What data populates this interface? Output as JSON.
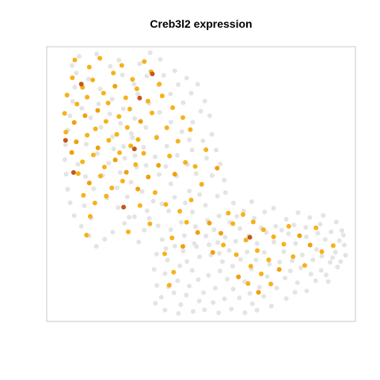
{
  "chart_data": {
    "type": "scatter",
    "title": "Creb3l2 expression",
    "xlabel": "",
    "ylabel": "",
    "xlim": [
      0,
      100
    ],
    "ylim": [
      0,
      100
    ],
    "grid": false,
    "legend": "none",
    "colors": {
      "background_cells": "#e4e4e4",
      "expressing": "#f6b21a",
      "expressing_mid": "#efa00b",
      "high": "#c6561a",
      "panel_border": "#c8c8c8"
    },
    "background_cells": [
      [
        10.5,
        96.5
      ],
      [
        16.2,
        97.3
      ],
      [
        23.4,
        95.1
      ],
      [
        30.1,
        93.8
      ],
      [
        36.8,
        95.4
      ],
      [
        41.5,
        91.2
      ],
      [
        45.3,
        88.6
      ],
      [
        48.9,
        86.3
      ],
      [
        51.2,
        80.2
      ],
      [
        52.8,
        74.9
      ],
      [
        53.5,
        68.1
      ],
      [
        54.9,
        62.4
      ],
      [
        56.2,
        57.3
      ],
      [
        53.6,
        53.1
      ],
      [
        50.1,
        49.8
      ],
      [
        46.2,
        47.5
      ],
      [
        41.4,
        45.2
      ],
      [
        37.3,
        42.8
      ],
      [
        32.5,
        40.3
      ],
      [
        28.4,
        38.1
      ],
      [
        25.2,
        35.7
      ],
      [
        21.4,
        32.5
      ],
      [
        18.8,
        29.9
      ],
      [
        16.1,
        27.3
      ],
      [
        13.7,
        31.2
      ],
      [
        11.2,
        34.6
      ],
      [
        8.9,
        38.5
      ],
      [
        7.6,
        43.2
      ],
      [
        6.8,
        48.1
      ],
      [
        6.3,
        53.6
      ],
      [
        5.9,
        58.9
      ],
      [
        6.1,
        64.3
      ],
      [
        6.8,
        69.6
      ],
      [
        7.5,
        74.8
      ],
      [
        8.4,
        80.1
      ],
      [
        9.1,
        85.3
      ],
      [
        9.6,
        90.4
      ],
      [
        13.5,
        88.2
      ],
      [
        17.3,
        84.6
      ],
      [
        21.2,
        80.9
      ],
      [
        24.8,
        77.4
      ],
      [
        28.5,
        73.9
      ],
      [
        32.1,
        70.6
      ],
      [
        35.6,
        67.2
      ],
      [
        38.9,
        63.8
      ],
      [
        42.3,
        60.5
      ],
      [
        45.6,
        57.1
      ],
      [
        48.4,
        53.8
      ],
      [
        40.2,
        50.1
      ],
      [
        36.4,
        53.5
      ],
      [
        32.2,
        56.8
      ],
      [
        28.6,
        60.3
      ],
      [
        24.9,
        63.7
      ],
      [
        21.3,
        67.2
      ],
      [
        17.6,
        70.7
      ],
      [
        14.2,
        74.1
      ],
      [
        11.4,
        77.6
      ],
      [
        12.8,
        64.5
      ],
      [
        16.4,
        61.1
      ],
      [
        20.1,
        57.6
      ],
      [
        23.8,
        54.2
      ],
      [
        27.3,
        50.7
      ],
      [
        30.9,
        47.3
      ],
      [
        34.5,
        43.8
      ],
      [
        19.5,
        44.9
      ],
      [
        23.1,
        41.4
      ],
      [
        26.7,
        37.9
      ],
      [
        15.2,
        48.3
      ],
      [
        12.6,
        52.7
      ],
      [
        10.1,
        57.2
      ],
      [
        44.2,
        79.6
      ],
      [
        40.1,
        82.8
      ],
      [
        36.2,
        86.1
      ],
      [
        32.4,
        89.3
      ],
      [
        28.3,
        86.4
      ],
      [
        24.5,
        89.7
      ],
      [
        20.6,
        92.9
      ],
      [
        47.3,
        72.5
      ],
      [
        43.8,
        69.1
      ],
      [
        40.2,
        72.6
      ],
      [
        36.6,
        76.1
      ],
      [
        33.1,
        79.4
      ],
      [
        29.5,
        82.8
      ],
      [
        50.6,
        65.8
      ],
      [
        47.1,
        62.4
      ],
      [
        27.8,
        66.9
      ],
      [
        31.4,
        63.4
      ],
      [
        35.1,
        59.9
      ],
      [
        38.6,
        56.4
      ],
      [
        42.1,
        52.9
      ],
      [
        57.5,
        51.4
      ],
      [
        55.3,
        45.6
      ],
      [
        51.4,
        42.3
      ],
      [
        47.2,
        39.8
      ],
      [
        43.6,
        36.1
      ],
      [
        40.2,
        33.4
      ],
      [
        37.4,
        29.8
      ],
      [
        35.6,
        24.5
      ],
      [
        34.8,
        18.9
      ],
      [
        35.7,
        13.1
      ],
      [
        37.1,
        8.8
      ],
      [
        39.4,
        12.6
      ],
      [
        38.3,
        17.4
      ],
      [
        39.1,
        22.3
      ],
      [
        41.5,
        27.4
      ],
      [
        44.6,
        31.2
      ],
      [
        48.2,
        34.5
      ],
      [
        52.1,
        36.8
      ],
      [
        55.8,
        38.4
      ],
      [
        59.3,
        36.1
      ],
      [
        62.6,
        33.8
      ],
      [
        65.4,
        31.2
      ],
      [
        68.1,
        28.4
      ],
      [
        70.5,
        25.1
      ],
      [
        72.1,
        20.8
      ],
      [
        71.4,
        16.3
      ],
      [
        68.9,
        12.4
      ],
      [
        65.8,
        10.2
      ],
      [
        62.4,
        8.6
      ],
      [
        64.1,
        14.5
      ],
      [
        66.3,
        19.1
      ],
      [
        62.8,
        22.6
      ],
      [
        59.1,
        25.8
      ],
      [
        55.4,
        28.7
      ],
      [
        51.6,
        31.1
      ],
      [
        47.8,
        28.4
      ],
      [
        44.2,
        25.6
      ],
      [
        43.1,
        20.2
      ],
      [
        42.4,
        14.8
      ],
      [
        58.5,
        15.4
      ],
      [
        60.2,
        20.1
      ],
      [
        56.9,
        21.8
      ],
      [
        53.2,
        24.2
      ],
      [
        49.5,
        23.5
      ],
      [
        47.1,
        18.6
      ],
      [
        46.2,
        12.9
      ],
      [
        50.8,
        10.5
      ],
      [
        54.6,
        12.1
      ],
      [
        73.6,
        28.9
      ],
      [
        76.8,
        25.4
      ],
      [
        79.5,
        22.1
      ],
      [
        82.3,
        19.5
      ],
      [
        85.6,
        17.2
      ],
      [
        88.9,
        18.6
      ],
      [
        91.8,
        21.5
      ],
      [
        93.5,
        25.2
      ],
      [
        94.8,
        29.4
      ],
      [
        95.6,
        33.1
      ],
      [
        96.4,
        27.8
      ],
      [
        92.1,
        32.6
      ],
      [
        88.6,
        35.4
      ],
      [
        85.2,
        37.8
      ],
      [
        81.4,
        39.6
      ],
      [
        77.6,
        37.2
      ],
      [
        74.2,
        34.6
      ],
      [
        71.1,
        32.4
      ],
      [
        84.1,
        30.8
      ],
      [
        80.6,
        28.4
      ],
      [
        87.4,
        26.2
      ],
      [
        90.2,
        29.8
      ],
      [
        78.3,
        31.9
      ],
      [
        82.8,
        24.2
      ],
      [
        86.2,
        22.4
      ],
      [
        75.4,
        21.6
      ],
      [
        78.9,
        18.4
      ],
      [
        63.8,
        40.2
      ],
      [
        60.5,
        43.1
      ],
      [
        67.2,
        37.5
      ],
      [
        70.6,
        39.8
      ],
      [
        66.4,
        43.6
      ],
      [
        73.5,
        41.2
      ],
      [
        84.2,
        11.1
      ],
      [
        91.2,
        14.5
      ],
      [
        89.6,
        38.6
      ],
      [
        93.8,
        36.2
      ],
      [
        8.2,
        93.1
      ],
      [
        33.5,
        97.8
      ],
      [
        12.2,
        42.1
      ],
      [
        14.4,
        37.5
      ],
      [
        31.6,
        33.2
      ],
      [
        29.8,
        28.9
      ],
      [
        22.8,
        48.6
      ],
      [
        26.1,
        45.3
      ],
      [
        18.1,
        53.2
      ],
      [
        21.7,
        62.8
      ],
      [
        25.3,
        59.4
      ],
      [
        29.1,
        56.2
      ],
      [
        16.8,
        79.2
      ],
      [
        20.4,
        75.6
      ],
      [
        23.9,
        72.1
      ],
      [
        27.4,
        68.4
      ],
      [
        37.9,
        89.6
      ],
      [
        42.6,
        86.2
      ],
      [
        46.8,
        83.1
      ],
      [
        49.9,
        76.5
      ],
      [
        46.2,
        66.1
      ],
      [
        51.8,
        59.4
      ],
      [
        49.5,
        46.2
      ],
      [
        44.9,
        43.1
      ],
      [
        39.5,
        40.2
      ],
      [
        57.9,
        46.9
      ],
      [
        61.6,
        38.2
      ],
      [
        69.4,
        34.1
      ],
      [
        76.1,
        33.2
      ],
      [
        80.1,
        35.1
      ],
      [
        83.9,
        34.2
      ],
      [
        87.8,
        32.1
      ],
      [
        92.6,
        23.2
      ],
      [
        94.2,
        19.8
      ],
      [
        96.8,
        24.1
      ],
      [
        89.1,
        23.8
      ],
      [
        81.2,
        14.1
      ],
      [
        77.2,
        15.8
      ],
      [
        74.5,
        12.2
      ],
      [
        70.3,
        9.1
      ],
      [
        66.6,
        6.4
      ],
      [
        52.4,
        16.8
      ],
      [
        56.1,
        18.4
      ],
      [
        49.1,
        15.2
      ],
      [
        45.4,
        21.8
      ],
      [
        41.2,
        10.4
      ],
      [
        38.6,
        26.5
      ],
      [
        36.1,
        34.8
      ],
      [
        33.2,
        37.5
      ],
      [
        54.2,
        33.4
      ],
      [
        57.8,
        30.6
      ],
      [
        61.2,
        29.2
      ],
      [
        64.9,
        25.3
      ],
      [
        67.8,
        22.4
      ],
      [
        60.4,
        11.8
      ],
      [
        57.6,
        8.2
      ],
      [
        53.9,
        6.9
      ],
      [
        49.4,
        7.4
      ],
      [
        45.2,
        9.6
      ],
      [
        43.4,
        6.1
      ],
      [
        48.5,
        27.2
      ],
      [
        52.6,
        27.9
      ],
      [
        55.9,
        24.8
      ],
      [
        96.1,
        31.4
      ],
      [
        95.2,
        21.8
      ],
      [
        90.5,
        16.9
      ],
      [
        87.1,
        14.8
      ],
      [
        80.4,
        10.6
      ],
      [
        77.6,
        8.3
      ],
      [
        72.8,
        5.6
      ],
      [
        68.1,
        4.1
      ],
      [
        64.2,
        3.2
      ],
      [
        59.8,
        4.5
      ],
      [
        55.7,
        3.1
      ],
      [
        51.1,
        4.2
      ],
      [
        47.4,
        3.6
      ],
      [
        42.7,
        2.9
      ],
      [
        38.3,
        4.1
      ],
      [
        35.2,
        6.6
      ]
    ],
    "expressing_cells": [
      [
        9.1,
        95.2
      ],
      [
        13.8,
        92.6
      ],
      [
        17.2,
        95.8
      ],
      [
        21.6,
        90.4
      ],
      [
        24.3,
        93.2
      ],
      [
        27.8,
        88.1
      ],
      [
        31.6,
        94.6
      ],
      [
        33.8,
        90.9
      ],
      [
        36.5,
        86.4
      ],
      [
        8.3,
        88.7
      ],
      [
        11.6,
        85.2
      ],
      [
        14.9,
        87.9
      ],
      [
        18.4,
        83.1
      ],
      [
        22.1,
        85.6
      ],
      [
        25.6,
        81.4
      ],
      [
        29.2,
        84.7
      ],
      [
        32.8,
        80.2
      ],
      [
        6.6,
        82.4
      ],
      [
        9.8,
        79.1
      ],
      [
        13.1,
        81.6
      ],
      [
        16.5,
        76.8
      ],
      [
        19.9,
        79.5
      ],
      [
        23.4,
        74.6
      ],
      [
        26.9,
        77.3
      ],
      [
        30.4,
        72.8
      ],
      [
        34.1,
        75.9
      ],
      [
        5.8,
        75.7
      ],
      [
        8.9,
        72.4
      ],
      [
        12.4,
        74.9
      ],
      [
        15.8,
        70.1
      ],
      [
        19.2,
        72.8
      ],
      [
        22.7,
        68.1
      ],
      [
        26.1,
        70.6
      ],
      [
        29.6,
        66.2
      ],
      [
        6.2,
        68.9
      ],
      [
        9.6,
        65.4
      ],
      [
        13.1,
        67.8
      ],
      [
        16.6,
        63.2
      ],
      [
        20.1,
        65.9
      ],
      [
        23.6,
        61.4
      ],
      [
        27.2,
        63.9
      ],
      [
        8.1,
        61.5
      ],
      [
        11.6,
        58.1
      ],
      [
        15.1,
        60.6
      ],
      [
        18.7,
        56.2
      ],
      [
        22.2,
        58.8
      ],
      [
        25.8,
        54.3
      ],
      [
        10.2,
        53.8
      ],
      [
        13.8,
        50.4
      ],
      [
        17.4,
        52.9
      ],
      [
        21.1,
        48.6
      ],
      [
        24.6,
        51.1
      ],
      [
        11.9,
        45.9
      ],
      [
        15.6,
        43.1
      ],
      [
        19.3,
        45.6
      ],
      [
        14.1,
        38.2
      ],
      [
        37.4,
        82.1
      ],
      [
        40.8,
        77.8
      ],
      [
        44.1,
        74.2
      ],
      [
        38.9,
        70.5
      ],
      [
        35.6,
        66.9
      ],
      [
        42.5,
        65.6
      ],
      [
        39.8,
        60.2
      ],
      [
        36.2,
        56.8
      ],
      [
        44.9,
        57.9
      ],
      [
        41.5,
        53.6
      ],
      [
        31.4,
        61.2
      ],
      [
        28.8,
        57.1
      ],
      [
        32.9,
        52.6
      ],
      [
        29.5,
        48.2
      ],
      [
        35.1,
        46.9
      ],
      [
        38.6,
        42.6
      ],
      [
        43.1,
        40.1
      ],
      [
        46.8,
        44.2
      ],
      [
        50.2,
        49.9
      ],
      [
        45.3,
        36.1
      ],
      [
        48.9,
        32.4
      ],
      [
        52.7,
        35.8
      ],
      [
        56.4,
        32.1
      ],
      [
        44.1,
        27.3
      ],
      [
        40.6,
        30.4
      ],
      [
        38.2,
        24.6
      ],
      [
        41.1,
        17.9
      ],
      [
        39.7,
        13.2
      ],
      [
        60.3,
        35.6
      ],
      [
        63.6,
        38.9
      ],
      [
        66.9,
        36.2
      ],
      [
        70.2,
        33.4
      ],
      [
        73.5,
        30.8
      ],
      [
        76.8,
        28.1
      ],
      [
        64.5,
        29.6
      ],
      [
        68.2,
        25.8
      ],
      [
        71.9,
        22.4
      ],
      [
        66.1,
        20.1
      ],
      [
        69.5,
        17.3
      ],
      [
        65.2,
        13.8
      ],
      [
        68.6,
        10.6
      ],
      [
        62.1,
        16.2
      ],
      [
        57.2,
        27.8
      ],
      [
        53.8,
        25.1
      ],
      [
        61.4,
        24.3
      ],
      [
        78.4,
        34.6
      ],
      [
        81.9,
        31.2
      ],
      [
        85.3,
        27.8
      ],
      [
        89.1,
        25.4
      ],
      [
        92.8,
        27.6
      ],
      [
        83.6,
        20.4
      ],
      [
        79.8,
        23.6
      ],
      [
        75.3,
        18.9
      ],
      [
        72.6,
        13.6
      ],
      [
        51.6,
        62.5
      ],
      [
        48.1,
        56.4
      ],
      [
        55.2,
        55.8
      ],
      [
        46.5,
        69.8
      ],
      [
        33.4,
        35.5
      ],
      [
        30.2,
        42.2
      ],
      [
        12.9,
        31.4
      ],
      [
        26.4,
        32.6
      ],
      [
        58.8,
        39.4
      ],
      [
        87.2,
        34.1
      ]
    ],
    "high_cells": [
      [
        11.2,
        86.4
      ],
      [
        30.1,
        81.3
      ],
      [
        6.1,
        65.9
      ],
      [
        8.7,
        54.2
      ],
      [
        28.4,
        62.8
      ],
      [
        24.9,
        41.6
      ],
      [
        34.2,
        90.1
      ],
      [
        65.8,
        30.6
      ]
    ]
  }
}
